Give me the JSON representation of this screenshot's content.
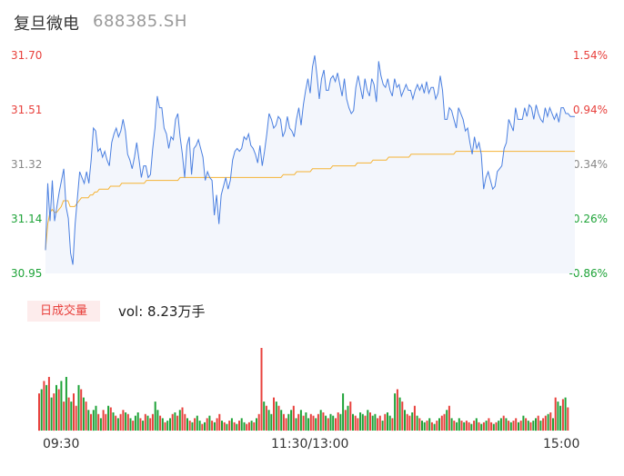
{
  "header": {
    "name": "复旦微电",
    "code": "688385.SH"
  },
  "chart_data": [
    {
      "type": "line",
      "y_ticks_price": [
        "31.70",
        "31.51",
        "31.32",
        "31.14",
        "30.95"
      ],
      "y_ticks_pct": [
        "1.54%",
        "0.94%",
        "0.34%",
        "-0.26%",
        "-0.86%"
      ],
      "ylim": [
        30.95,
        31.7
      ],
      "x_ticks": [
        "09:30",
        "11:30/13:00",
        "15:00"
      ],
      "colors": {
        "price": "#4a7fe0",
        "avg": "#f5b335",
        "up": "#e8413d",
        "down": "#1ea338",
        "fill": "#f3f6fc"
      },
      "series": [
        {
          "values": [
            31.03,
            31.26,
            31.13,
            31.27,
            31.13,
            31.18,
            31.23,
            31.27,
            31.31,
            31.18,
            31.14,
            31.02,
            30.98,
            31.12,
            31.21,
            31.3,
            31.28,
            31.26,
            31.3,
            31.26,
            31.34,
            31.45,
            31.44,
            31.37,
            31.38,
            31.35,
            31.37,
            31.34,
            31.32,
            31.4,
            31.43,
            31.45,
            31.42,
            31.44,
            31.48,
            31.44,
            31.36,
            31.34,
            31.31,
            31.35,
            31.4,
            31.34,
            31.28,
            31.32,
            31.32,
            31.28,
            31.29,
            31.38,
            31.45,
            31.56,
            31.52,
            31.52,
            31.45,
            31.43,
            31.38,
            31.42,
            31.41,
            31.48,
            31.5,
            31.42,
            31.36,
            31.28,
            31.39,
            31.42,
            31.29,
            31.38,
            31.39,
            31.41,
            31.38,
            31.35,
            31.27,
            31.3,
            31.28,
            31.27,
            31.15,
            31.22,
            31.12,
            31.22,
            31.25,
            31.28,
            31.24,
            31.27,
            31.34,
            31.37,
            31.38,
            31.37,
            31.38,
            31.42,
            31.41,
            31.43,
            31.39,
            31.38,
            31.36,
            31.33,
            31.39,
            31.32,
            31.37,
            31.43,
            31.5,
            31.48,
            31.45,
            31.46,
            31.49,
            31.48,
            31.42,
            31.44,
            31.49,
            31.45,
            31.44,
            31.42,
            31.48,
            31.52,
            31.46,
            31.53,
            31.58,
            31.62,
            31.57,
            31.66,
            31.7,
            31.63,
            31.55,
            31.62,
            31.65,
            31.58,
            31.58,
            31.62,
            31.63,
            31.61,
            31.64,
            31.6,
            31.56,
            31.62,
            31.55,
            31.52,
            31.5,
            31.51,
            31.59,
            31.63,
            31.59,
            31.55,
            31.62,
            31.58,
            31.56,
            31.62,
            31.6,
            31.54,
            31.68,
            31.63,
            31.6,
            31.59,
            31.62,
            31.58,
            31.56,
            31.62,
            31.59,
            31.6,
            31.56,
            31.58,
            31.6,
            31.58,
            31.58,
            31.55,
            31.58,
            31.6,
            31.58,
            31.6,
            31.57,
            31.61,
            31.57,
            31.59,
            31.59,
            31.55,
            31.57,
            31.63,
            31.58,
            31.48,
            31.48,
            31.52,
            31.51,
            31.48,
            31.45,
            31.52,
            31.5,
            31.48,
            31.44,
            31.45,
            31.4,
            31.36,
            31.42,
            31.38,
            31.4,
            31.36,
            31.24,
            31.28,
            31.3,
            31.27,
            31.24,
            31.25,
            31.3,
            31.31,
            31.32,
            31.38,
            31.4,
            31.48,
            31.46,
            31.44,
            31.52,
            31.48,
            31.48,
            31.48,
            31.52,
            31.49,
            31.53,
            31.52,
            31.48,
            31.53,
            31.5,
            31.48,
            31.47,
            31.52,
            31.49,
            31.52,
            31.5,
            31.48,
            31.5,
            31.47,
            31.52,
            31.52,
            31.5,
            31.5,
            31.49,
            31.49,
            31.49
          ]
        },
        {
          "values": [
            31.03,
            31.12,
            31.16,
            31.17,
            31.16,
            31.16,
            31.17,
            31.18,
            31.2,
            31.2,
            31.2,
            31.18,
            31.18,
            31.18,
            31.19,
            31.2,
            31.21,
            31.21,
            31.21,
            31.21,
            31.22,
            31.22,
            31.23,
            31.23,
            31.24,
            31.24,
            31.24,
            31.24,
            31.24,
            31.25,
            31.25,
            31.25,
            31.25,
            31.25,
            31.26,
            31.26,
            31.26,
            31.26,
            31.26,
            31.26,
            31.26,
            31.26,
            31.26,
            31.26,
            31.26,
            31.27,
            31.27,
            31.27,
            31.27,
            31.27,
            31.27,
            31.27,
            31.27,
            31.27,
            31.27,
            31.27,
            31.27,
            31.27,
            31.27,
            31.27,
            31.28,
            31.28,
            31.28,
            31.28,
            31.28,
            31.28,
            31.28,
            31.28,
            31.28,
            31.28,
            31.28,
            31.28,
            31.28,
            31.28,
            31.28,
            31.28,
            31.28,
            31.28,
            31.28,
            31.28,
            31.28,
            31.28,
            31.28,
            31.28,
            31.28,
            31.28,
            31.28,
            31.28,
            31.28,
            31.28,
            31.28,
            31.28,
            31.28,
            31.28,
            31.28,
            31.28,
            31.28,
            31.28,
            31.28,
            31.28,
            31.28,
            31.28,
            31.28,
            31.28,
            31.28,
            31.28,
            31.29,
            31.29,
            31.29,
            31.29,
            31.29,
            31.29,
            31.3,
            31.3,
            31.3,
            31.3,
            31.3,
            31.3,
            31.3,
            31.31,
            31.31,
            31.31,
            31.31,
            31.31,
            31.31,
            31.31,
            31.31,
            31.31,
            31.32,
            31.32,
            31.32,
            31.32,
            31.32,
            31.32,
            31.32,
            31.32,
            31.32,
            31.32,
            31.32,
            31.33,
            31.33,
            31.33,
            31.33,
            31.33,
            31.33,
            31.33,
            31.34,
            31.34,
            31.34,
            31.34,
            31.34,
            31.34,
            31.34,
            31.35,
            31.35,
            31.35,
            31.35,
            31.35,
            31.35,
            31.35,
            31.35,
            31.35,
            31.35,
            31.36,
            31.36,
            31.36,
            31.36,
            31.36,
            31.36,
            31.36,
            31.36,
            31.36,
            31.36,
            31.36,
            31.36,
            31.36,
            31.36,
            31.36,
            31.36,
            31.36,
            31.36,
            31.36,
            31.36,
            31.37,
            31.37,
            31.37,
            31.37,
            31.37,
            31.37,
            31.37,
            31.37,
            31.37,
            31.37,
            31.37,
            31.37,
            31.37,
            31.37,
            31.37,
            31.37,
            31.37,
            31.37,
            31.37,
            31.37,
            31.37,
            31.37,
            31.37,
            31.37,
            31.37,
            31.37,
            31.37,
            31.37,
            31.37,
            31.37,
            31.37,
            31.37,
            31.37,
            31.37,
            31.37,
            31.37,
            31.37,
            31.37,
            31.37,
            31.37,
            31.37,
            31.37,
            31.37,
            31.37,
            31.37,
            31.37,
            31.37,
            31.37,
            31.37,
            31.37,
            31.37,
            31.37,
            31.37,
            31.37
          ]
        }
      ]
    },
    {
      "type": "bar",
      "values": [
        0.45,
        0.5,
        0.6,
        0.55,
        0.65,
        0.4,
        0.45,
        0.55,
        0.5,
        0.6,
        0.35,
        0.65,
        0.4,
        0.35,
        0.45,
        0.3,
        0.55,
        0.5,
        0.4,
        0.35,
        0.25,
        0.2,
        0.25,
        0.3,
        0.2,
        0.15,
        0.25,
        0.2,
        0.3,
        0.28,
        0.22,
        0.18,
        0.15,
        0.2,
        0.25,
        0.22,
        0.2,
        0.15,
        0.12,
        0.18,
        0.22,
        0.15,
        0.12,
        0.2,
        0.18,
        0.15,
        0.2,
        0.35,
        0.25,
        0.18,
        0.15,
        0.1,
        0.12,
        0.15,
        0.2,
        0.22,
        0.18,
        0.25,
        0.28,
        0.2,
        0.15,
        0.12,
        0.1,
        0.15,
        0.18,
        0.12,
        0.08,
        0.1,
        0.15,
        0.18,
        0.12,
        0.1,
        0.15,
        0.2,
        0.12,
        0.1,
        0.08,
        0.12,
        0.15,
        0.1,
        0.08,
        0.12,
        0.15,
        0.1,
        0.08,
        0.1,
        0.12,
        0.1,
        0.15,
        0.2,
        1.0,
        0.35,
        0.3,
        0.25,
        0.2,
        0.4,
        0.35,
        0.3,
        0.25,
        0.2,
        0.15,
        0.2,
        0.25,
        0.3,
        0.15,
        0.2,
        0.25,
        0.18,
        0.22,
        0.15,
        0.2,
        0.18,
        0.15,
        0.2,
        0.25,
        0.22,
        0.18,
        0.15,
        0.2,
        0.18,
        0.15,
        0.22,
        0.2,
        0.45,
        0.25,
        0.3,
        0.35,
        0.2,
        0.18,
        0.15,
        0.22,
        0.2,
        0.18,
        0.25,
        0.22,
        0.18,
        0.2,
        0.15,
        0.18,
        0.12,
        0.2,
        0.22,
        0.18,
        0.15,
        0.45,
        0.5,
        0.4,
        0.35,
        0.25,
        0.2,
        0.18,
        0.22,
        0.3,
        0.18,
        0.15,
        0.12,
        0.1,
        0.12,
        0.15,
        0.1,
        0.08,
        0.12,
        0.15,
        0.18,
        0.2,
        0.25,
        0.3,
        0.15,
        0.12,
        0.1,
        0.15,
        0.12,
        0.1,
        0.12,
        0.1,
        0.08,
        0.12,
        0.15,
        0.1,
        0.08,
        0.1,
        0.12,
        0.15,
        0.1,
        0.08,
        0.1,
        0.12,
        0.15,
        0.18,
        0.15,
        0.12,
        0.1,
        0.12,
        0.15,
        0.1,
        0.12,
        0.18,
        0.15,
        0.12,
        0.1,
        0.12,
        0.15,
        0.18,
        0.12,
        0.15,
        0.18,
        0.2,
        0.22,
        0.15,
        0.4,
        0.35,
        0.3,
        0.38,
        0.4,
        0.28
      ],
      "directions": [
        1,
        0,
        1,
        0,
        1,
        0,
        1,
        0,
        1,
        0,
        1,
        0,
        1,
        0,
        1,
        1,
        0,
        1,
        0,
        1,
        0,
        1,
        0,
        0,
        1,
        0,
        1,
        1,
        0,
        1,
        0,
        1,
        0,
        1,
        1,
        0,
        1,
        0,
        1,
        0,
        0,
        1,
        0,
        1,
        0,
        1,
        1,
        0,
        0,
        1,
        0,
        1,
        0,
        0,
        1,
        0,
        1,
        0,
        1,
        1,
        0,
        1,
        0,
        1,
        0,
        0,
        1,
        0,
        1,
        0,
        1,
        0,
        1,
        1,
        0,
        1,
        0,
        1,
        0,
        1,
        0,
        1,
        0,
        0,
        1,
        1,
        0,
        1,
        0,
        1,
        1,
        0,
        1,
        0,
        0,
        1,
        0,
        1,
        0,
        1,
        1,
        0,
        0,
        1,
        0,
        1,
        0,
        1,
        0,
        0,
        1,
        1,
        0,
        1,
        0,
        1,
        0,
        1,
        0,
        0,
        1,
        1,
        0,
        0,
        1,
        0,
        1,
        0,
        1,
        1,
        0,
        0,
        1,
        0,
        1,
        0,
        0,
        1,
        1,
        0,
        1,
        0,
        0,
        1,
        0,
        1,
        0,
        1,
        0,
        1,
        1,
        0,
        1,
        0,
        1,
        0,
        0,
        1,
        0,
        1,
        0,
        1,
        0,
        1,
        1,
        0,
        1,
        0,
        1,
        0,
        0,
        1,
        0,
        1,
        1,
        0,
        1,
        0,
        1,
        0,
        1,
        0,
        1,
        1,
        0,
        1,
        0,
        0,
        1,
        0,
        1,
        0,
        1,
        1,
        0,
        1,
        0,
        1,
        0,
        1,
        0,
        0,
        1,
        0,
        1,
        1,
        0,
        1,
        0,
        1,
        0,
        0,
        1,
        0,
        1
      ]
    }
  ],
  "volume": {
    "tag": "日成交量",
    "label": "vol: 8.23万手"
  }
}
